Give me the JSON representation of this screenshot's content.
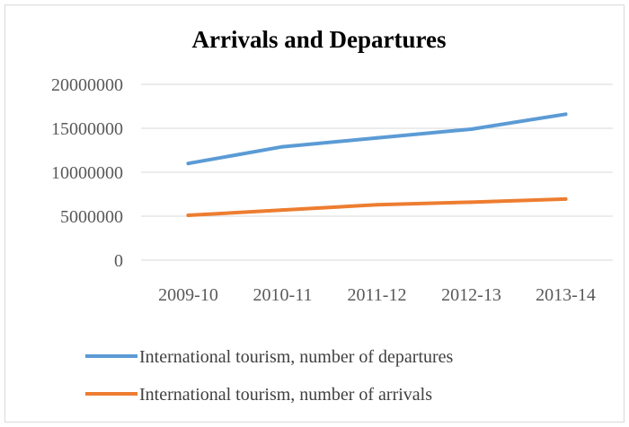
{
  "chart_data": {
    "type": "line",
    "title": "Arrivals and Departures",
    "xlabel": "",
    "ylabel": "",
    "categories": [
      "2009-10",
      "2010-11",
      "2011-12",
      "2012-13",
      "2013-14"
    ],
    "ylim": [
      0,
      20000000
    ],
    "yticks": [
      {
        "value": 0,
        "label": "0"
      },
      {
        "value": 5000000,
        "label": "5000000"
      },
      {
        "value": 10000000,
        "label": "10000000"
      },
      {
        "value": 15000000,
        "label": "15000000"
      },
      {
        "value": 20000000,
        "label": "20000000"
      }
    ],
    "grid": true,
    "legend_position": "bottom",
    "series": [
      {
        "name": "International tourism, number of departures",
        "color": "#5b9bd5",
        "values": [
          11000000,
          12900000,
          13900000,
          14900000,
          16600000
        ]
      },
      {
        "name": "International tourism, number of arrivals",
        "color": "#ed7d31",
        "values": [
          5100000,
          5700000,
          6300000,
          6600000,
          6950000
        ]
      }
    ]
  }
}
